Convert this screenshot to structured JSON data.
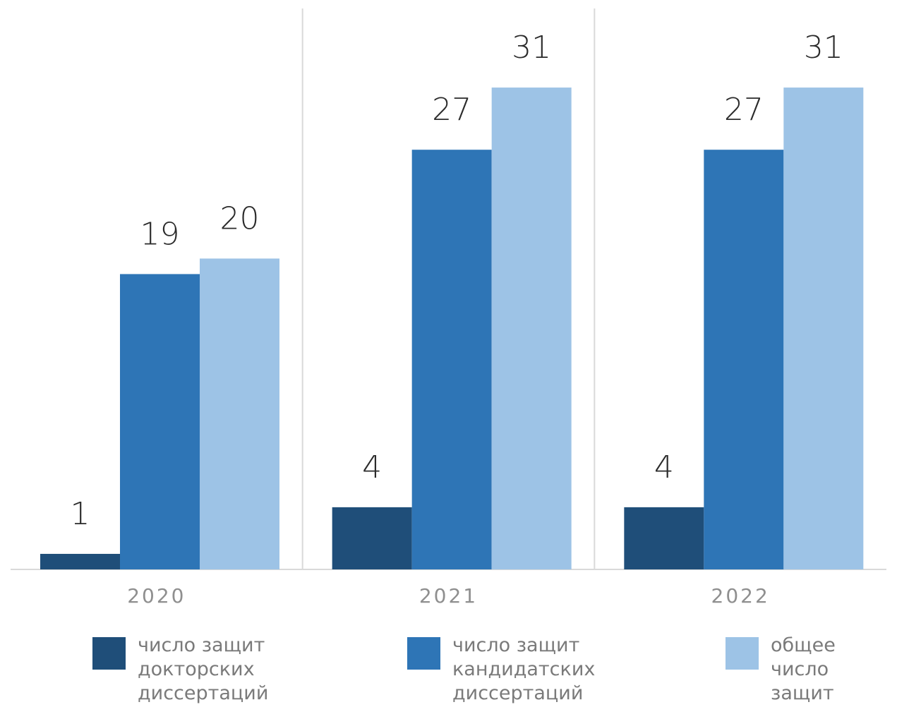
{
  "chart_data": {
    "type": "bar",
    "categories": [
      "2020",
      "2021",
      "2022"
    ],
    "series": [
      {
        "name": "число защит докторских диссертаций",
        "name_lines": [
          "число защит",
          "докторских",
          "диссертаций"
        ],
        "color": "#1f4e79",
        "values": [
          1,
          4,
          4
        ]
      },
      {
        "name": "число защит кандидатских диссертаций",
        "name_lines": [
          "число защит",
          "кандидатских",
          "диссертаций"
        ],
        "color": "#2e75b6",
        "values": [
          19,
          27,
          27
        ]
      },
      {
        "name": "общее число защит",
        "name_lines": [
          "общее",
          "число",
          "защит"
        ],
        "color": "#9dc3e6",
        "values": [
          20,
          31,
          31
        ]
      }
    ],
    "ylim": [
      0,
      34
    ],
    "grid": false,
    "legend_position": "bottom",
    "data_labels": true
  }
}
